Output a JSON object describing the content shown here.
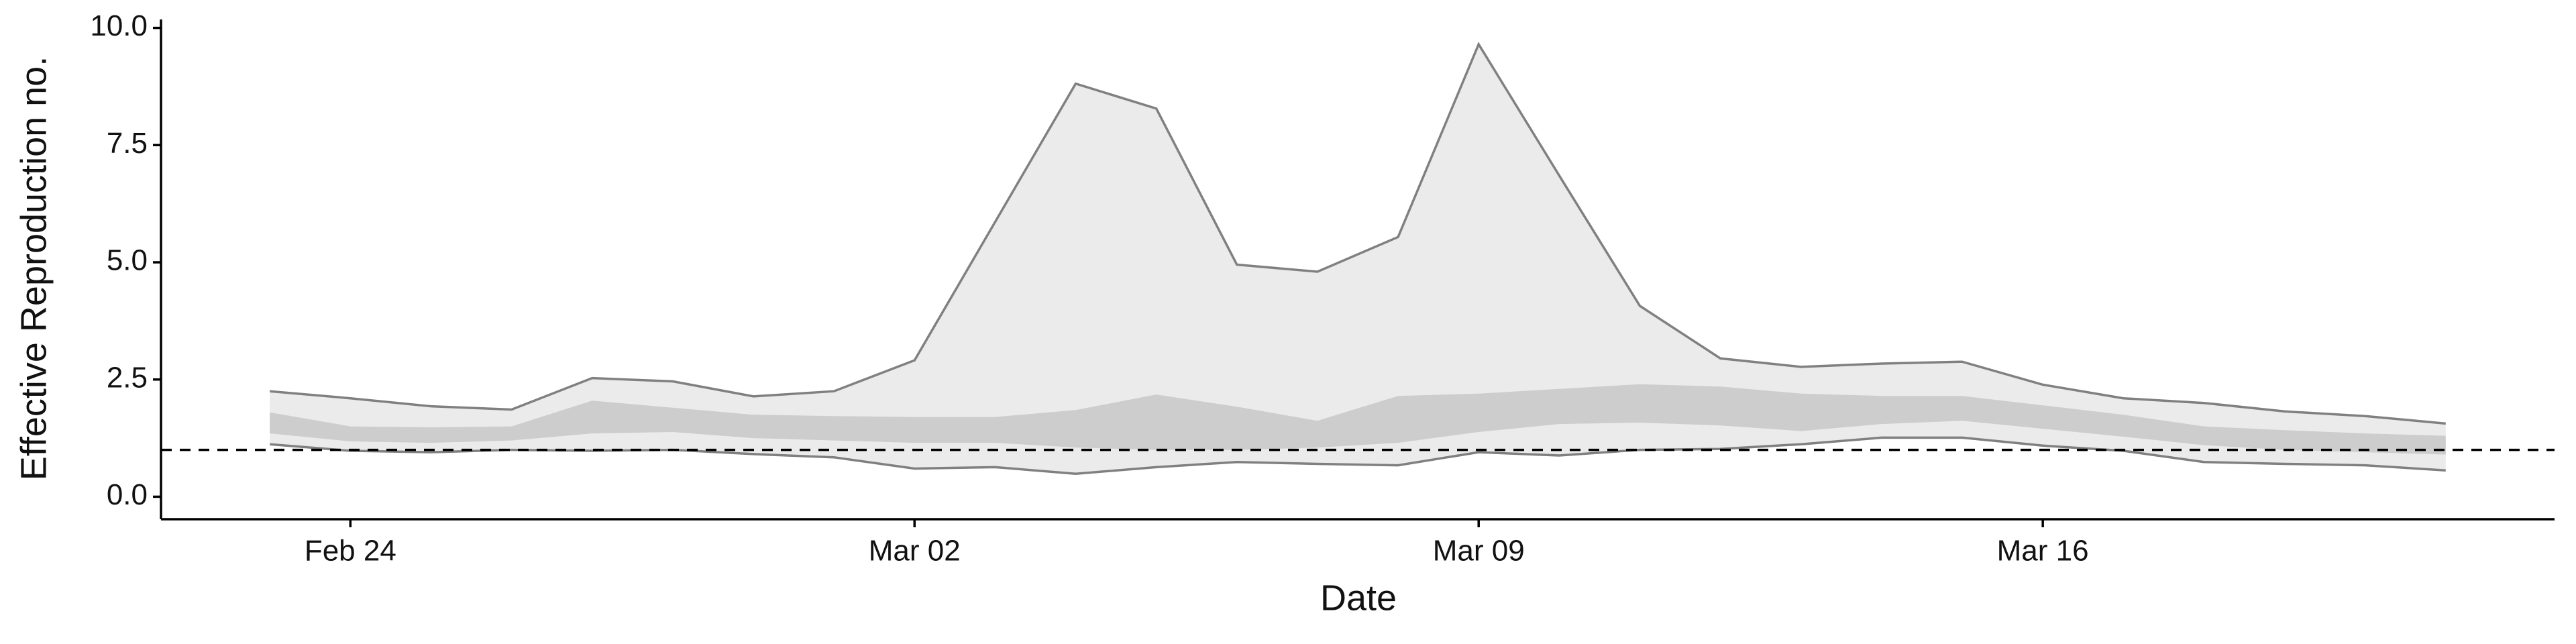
{
  "chart_data": {
    "type": "band",
    "x": [
      "Feb 23",
      "Feb 24",
      "Feb 25",
      "Feb 26",
      "Feb 27",
      "Feb 28",
      "Feb 29",
      "Mar 01",
      "Mar 02",
      "Mar 03",
      "Mar 04",
      "Mar 05",
      "Mar 06",
      "Mar 07",
      "Mar 08",
      "Mar 09",
      "Mar 10",
      "Mar 11",
      "Mar 12",
      "Mar 13",
      "Mar 14",
      "Mar 15",
      "Mar 16",
      "Mar 17",
      "Mar 18",
      "Mar 19",
      "Mar 20",
      "Mar 21"
    ],
    "bands": [
      {
        "color": "#ebebeb",
        "line_color": "#808080",
        "upper": [
          2.25,
          2.1,
          1.93,
          1.86,
          2.53,
          2.46,
          2.14,
          2.25,
          2.91,
          5.86,
          8.81,
          8.28,
          4.95,
          4.8,
          5.54,
          9.65,
          6.85,
          4.07,
          2.95,
          2.77,
          2.84,
          2.88,
          2.39,
          2.1,
          2.0,
          1.82,
          1.72,
          1.56
        ],
        "lower": [
          1.12,
          0.98,
          0.95,
          1.0,
          0.98,
          1.0,
          0.91,
          0.84,
          0.6,
          0.63,
          0.49,
          0.63,
          0.74,
          0.7,
          0.67,
          0.95,
          0.88,
          1.0,
          1.02,
          1.12,
          1.26,
          1.26,
          1.09,
          0.98,
          0.74,
          0.7,
          0.67,
          0.56
        ]
      },
      {
        "color": "#cdcdcd",
        "upper": [
          1.8,
          1.5,
          1.48,
          1.5,
          2.05,
          1.9,
          1.75,
          1.72,
          1.7,
          1.7,
          1.85,
          2.18,
          1.92,
          1.62,
          2.15,
          2.2,
          2.3,
          2.4,
          2.35,
          2.2,
          2.15,
          2.15,
          1.95,
          1.75,
          1.5,
          1.42,
          1.35,
          1.3
        ],
        "lower": [
          1.35,
          1.18,
          1.15,
          1.2,
          1.35,
          1.38,
          1.25,
          1.2,
          1.15,
          1.15,
          1.05,
          1.0,
          1.0,
          1.05,
          1.15,
          1.38,
          1.55,
          1.58,
          1.52,
          1.4,
          1.55,
          1.62,
          1.45,
          1.28,
          1.1,
          1.0,
          0.95,
          0.9
        ]
      }
    ],
    "hline": 1,
    "ylim": [
      -0.48,
      10.18
    ],
    "yticks": [
      {
        "value": 0,
        "label": "0.0"
      },
      {
        "value": 2.5,
        "label": "2.5"
      },
      {
        "value": 5,
        "label": "5.0"
      },
      {
        "value": 7.5,
        "label": "7.5"
      },
      {
        "value": 10,
        "label": "10.0"
      }
    ],
    "xticks": [
      "Feb 24",
      "Mar 02",
      "Mar 09",
      "Mar 16"
    ],
    "xlabel": "Date",
    "ylabel": "Effective Reproduction no."
  }
}
